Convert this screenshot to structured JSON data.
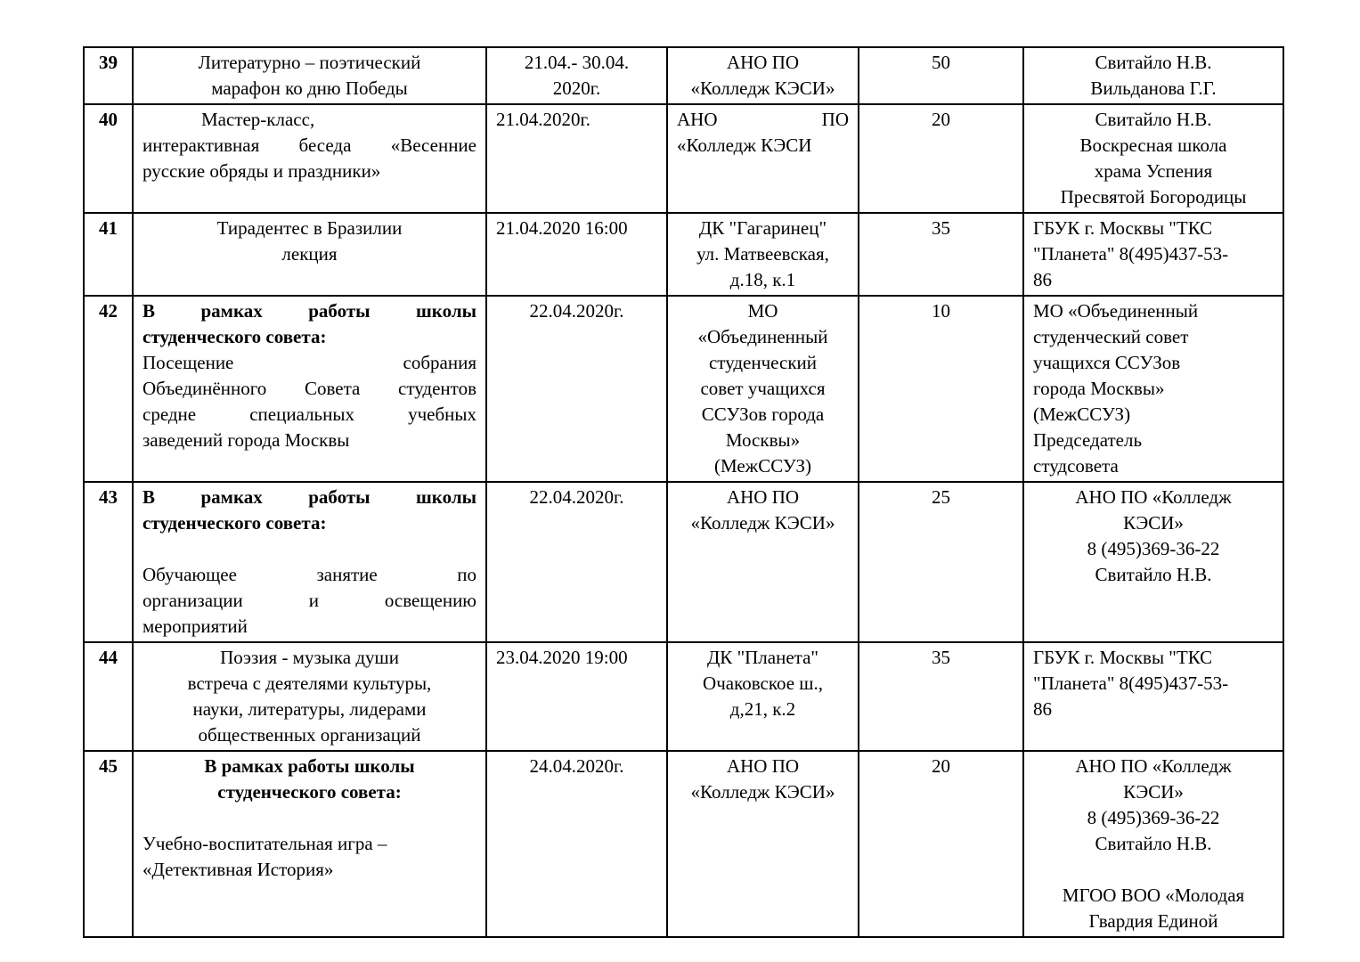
{
  "table": {
    "rows": [
      {
        "cells": [
          {
            "valign": "middle",
            "lines": [
              {
                "t": "39",
                "a": "c",
                "b": true
              }
            ]
          },
          {
            "valign": "middle",
            "lines": [
              {
                "t": "Литературно – поэтический",
                "a": "c"
              },
              {
                "t": "марафон ко дню Победы",
                "a": "c"
              }
            ]
          },
          {
            "valign": "middle",
            "lines": [
              {
                "t": "21.04.- 30.04.",
                "a": "c"
              },
              {
                "t": "2020г.",
                "a": "c"
              }
            ]
          },
          {
            "valign": "middle",
            "lines": [
              {
                "t": "АНО ПО",
                "a": "c"
              },
              {
                "t": "«Колледж КЭСИ»",
                "a": "c"
              }
            ]
          },
          {
            "valign": "middle",
            "lines": [
              {
                "t": "50",
                "a": "c"
              }
            ]
          },
          {
            "valign": "middle",
            "lines": [
              {
                "t": "Свитайло Н.В.",
                "a": "c"
              },
              {
                "t": "Вильданова Г.Г.",
                "a": "c"
              }
            ]
          }
        ]
      },
      {
        "cells": [
          {
            "valign": "middle",
            "lines": [
              {
                "t": "40",
                "a": "c",
                "b": true
              }
            ]
          },
          {
            "valign": "top",
            "lines": [
              {
                "t": "Мастер-класс,",
                "a": "l",
                "ind": true
              },
              {
                "t": "интерактивная беседа «Весенние",
                "a": "j"
              },
              {
                "t": "русские обряды и праздники»",
                "a": "l"
              }
            ]
          },
          {
            "valign": "top",
            "lines": [
              {
                "t": "21.04.2020г.",
                "a": "l"
              }
            ]
          },
          {
            "valign": "middle",
            "lines": [
              {
                "t": "АНО ПО",
                "a": "j"
              },
              {
                "t": "«Колледж КЭСИ",
                "a": "l"
              }
            ]
          },
          {
            "valign": "middle",
            "lines": [
              {
                "t": "20",
                "a": "c"
              }
            ]
          },
          {
            "valign": "top",
            "lines": [
              {
                "t": "Свитайло Н.В.",
                "a": "c"
              },
              {
                "t": "Воскресная школа",
                "a": "c"
              },
              {
                "t": "храма Успения",
                "a": "c"
              },
              {
                "t": "Пресвятой Богородицы",
                "a": "c"
              }
            ]
          }
        ]
      },
      {
        "cells": [
          {
            "valign": "middle",
            "lines": [
              {
                "t": "41",
                "a": "c",
                "b": true
              }
            ]
          },
          {
            "valign": "top",
            "lines": [
              {
                "t": "Тирадентес в Бразилии",
                "a": "c"
              },
              {
                "t": "лекция",
                "a": "c"
              }
            ]
          },
          {
            "valign": "top",
            "lines": [
              {
                "t": "21.04.2020 16:00",
                "a": "l"
              }
            ]
          },
          {
            "valign": "top",
            "lines": [
              {
                "t": "ДК \"Гагаринец\"",
                "a": "c"
              },
              {
                "t": "ул. Матвеевская,",
                "a": "c"
              },
              {
                "t": "д.18, к.1",
                "a": "c"
              }
            ]
          },
          {
            "valign": "top",
            "lines": [
              {
                "t": "35",
                "a": "c"
              }
            ]
          },
          {
            "valign": "top",
            "lines": [
              {
                "t": "ГБУК г. Москвы \"ТКС",
                "a": "l"
              },
              {
                "t": "\"Планета\" 8(495)437-53-",
                "a": "l"
              },
              {
                "t": "86",
                "a": "l"
              }
            ]
          }
        ]
      },
      {
        "cells": [
          {
            "valign": "middle",
            "lines": [
              {
                "t": "42",
                "a": "c",
                "b": true
              }
            ]
          },
          {
            "valign": "middle",
            "lines": [
              {
                "t": "В рамках работы школы",
                "a": "j",
                "b": true
              },
              {
                "t": "студенческого совета:",
                "a": "l",
                "b": true
              },
              {
                "t": "Посещение собрания",
                "a": "j"
              },
              {
                "t": "Объединённого Совета студентов",
                "a": "j"
              },
              {
                "t": "средне специальных учебных",
                "a": "j"
              },
              {
                "t": "заведений города Москвы",
                "a": "l"
              }
            ]
          },
          {
            "valign": "middle",
            "lines": [
              {
                "t": "22.04.2020г.",
                "a": "c"
              }
            ]
          },
          {
            "valign": "top",
            "lines": [
              {
                "t": "МО",
                "a": "c"
              },
              {
                "t": "«Объединенный",
                "a": "c"
              },
              {
                "t": "студенческий",
                "a": "c"
              },
              {
                "t": "совет учащихся",
                "a": "c"
              },
              {
                "t": "ССУЗов города",
                "a": "c"
              },
              {
                "t": "Москвы»",
                "a": "c"
              },
              {
                "t": "(МежССУЗ)",
                "a": "c"
              }
            ]
          },
          {
            "valign": "middle",
            "lines": [
              {
                "t": "10",
                "a": "c"
              }
            ]
          },
          {
            "valign": "top",
            "lines": [
              {
                "t": "МО «Объединенный",
                "a": "l"
              },
              {
                "t": "студенческий совет",
                "a": "l"
              },
              {
                "t": "учащихся ССУЗов",
                "a": "l"
              },
              {
                "t": "города Москвы»",
                "a": "l"
              },
              {
                "t": "(МежССУЗ)",
                "a": "l"
              },
              {
                "t": "Председатель",
                "a": "l"
              },
              {
                "t": "студсовета",
                "a": "l"
              }
            ]
          }
        ]
      },
      {
        "cells": [
          {
            "valign": "middle",
            "lines": [
              {
                "t": "43",
                "a": "c",
                "b": true
              }
            ]
          },
          {
            "valign": "top",
            "lines": [
              {
                "t": "В рамках работы школы",
                "a": "j",
                "b": true
              },
              {
                "t": "студенческого совета:",
                "a": "l",
                "b": true
              },
              {
                "t": "",
                "a": "l"
              },
              {
                "t": "Обучающее занятие по",
                "a": "j"
              },
              {
                "t": "организации и освещению",
                "a": "j"
              },
              {
                "t": "мероприятий",
                "a": "l"
              }
            ]
          },
          {
            "valign": "middle",
            "lines": [
              {
                "t": "22.04.2020г.",
                "a": "c"
              }
            ]
          },
          {
            "valign": "middle",
            "lines": [
              {
                "t": "АНО ПО",
                "a": "c"
              },
              {
                "t": "«Колледж КЭСИ»",
                "a": "c"
              }
            ]
          },
          {
            "valign": "middle",
            "lines": [
              {
                "t": "25",
                "a": "c"
              }
            ]
          },
          {
            "valign": "middle",
            "lines": [
              {
                "t": "АНО ПО «Колледж",
                "a": "c"
              },
              {
                "t": "КЭСИ»",
                "a": "c"
              },
              {
                "t": "8 (495)369-36-22",
                "a": "c"
              },
              {
                "t": "Свитайло Н.В.",
                "a": "c"
              }
            ]
          }
        ]
      },
      {
        "cells": [
          {
            "valign": "middle",
            "lines": [
              {
                "t": "44",
                "a": "c",
                "b": true
              }
            ]
          },
          {
            "valign": "top",
            "lines": [
              {
                "t": "Поэзия - музыка души",
                "a": "c"
              },
              {
                "t": "встреча с деятелями культуры,",
                "a": "c"
              },
              {
                "t": "науки, литературы, лидерами",
                "a": "c"
              },
              {
                "t": "общественных организаций",
                "a": "c"
              }
            ]
          },
          {
            "valign": "top",
            "lines": [
              {
                "t": "23.04.2020 19:00",
                "a": "l"
              }
            ]
          },
          {
            "valign": "top",
            "lines": [
              {
                "t": "ДК \"Планета\"",
                "a": "c"
              },
              {
                "t": "Очаковское ш.,",
                "a": "c"
              },
              {
                "t": "д,21, к.2",
                "a": "c"
              }
            ]
          },
          {
            "valign": "top",
            "lines": [
              {
                "t": "35",
                "a": "c"
              }
            ]
          },
          {
            "valign": "top",
            "lines": [
              {
                "t": "ГБУК г. Москвы \"ТКС",
                "a": "l"
              },
              {
                "t": "\"Планета\" 8(495)437-53-",
                "a": "l"
              },
              {
                "t": "86",
                "a": "l"
              }
            ]
          }
        ]
      },
      {
        "cells": [
          {
            "valign": "top",
            "lines": [
              {
                "t": "45",
                "a": "c",
                "b": true
              }
            ]
          },
          {
            "valign": "top",
            "lines": [
              {
                "t": "В рамках работы школы",
                "a": "c",
                "b": true
              },
              {
                "t": "студенческого совета:",
                "a": "c",
                "b": true
              },
              {
                "t": "",
                "a": "l"
              },
              {
                "t": "Учебно-воспитательная игра –",
                "a": "l"
              },
              {
                "t": "«Детективная История»",
                "a": "l"
              }
            ]
          },
          {
            "valign": "top",
            "lines": [
              {
                "t": "24.04.2020г.",
                "a": "c"
              }
            ]
          },
          {
            "valign": "top",
            "lines": [
              {
                "t": "АНО ПО",
                "a": "c"
              },
              {
                "t": "«Колледж КЭСИ»",
                "a": "c"
              }
            ]
          },
          {
            "valign": "top",
            "lines": [
              {
                "t": "20",
                "a": "c"
              }
            ]
          },
          {
            "valign": "top",
            "lines": [
              {
                "t": "АНО ПО «Колледж",
                "a": "c"
              },
              {
                "t": "КЭСИ»",
                "a": "c"
              },
              {
                "t": "8 (495)369-36-22",
                "a": "c"
              },
              {
                "t": "Свитайло Н.В.",
                "a": "c"
              },
              {
                "t": "",
                "a": "c"
              },
              {
                "t": "МГОО ВОО «Молодая",
                "a": "c"
              },
              {
                "t": "Гвардия Единой",
                "a": "c"
              }
            ]
          }
        ]
      }
    ]
  }
}
